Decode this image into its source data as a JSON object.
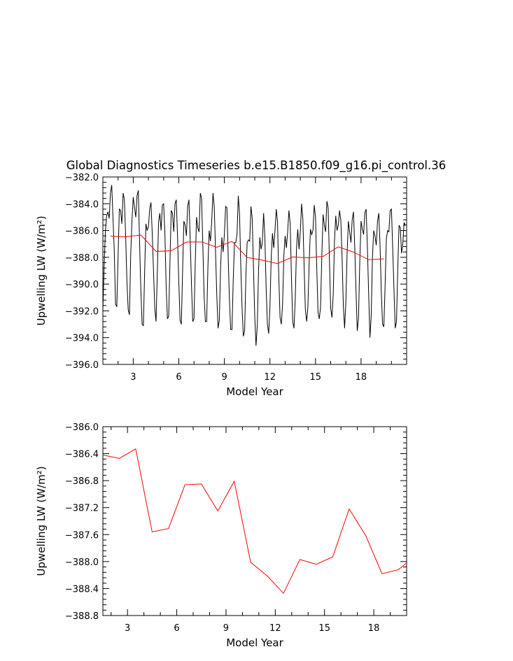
{
  "figure_title": "Global Diagnostics Timeseries b.e15.B1850.f09_g16.pi_control.36",
  "colors": {
    "monthly": "#000000",
    "annual": "#ff0000",
    "axes": "#000000"
  },
  "chart_data": [
    {
      "type": "line",
      "title": "Global Diagnostics Timeseries b.e15.B1850.f09_g16.pi_control.36",
      "xlabel": "Model Year",
      "ylabel": "Upwelling LW (W/m²)",
      "xlim": [
        1,
        21
      ],
      "ylim": [
        -396.0,
        -382.0
      ],
      "xticks": [
        3,
        6,
        9,
        12,
        15,
        18
      ],
      "yticks": [
        -382.0,
        -384.0,
        -386.0,
        -388.0,
        -390.0,
        -392.0,
        -394.0,
        -396.0
      ],
      "ytick_labels": [
        "−382.0",
        "−384.0",
        "−386.0",
        "−388.0",
        "−390.0",
        "−392.0",
        "−394.0",
        "−396.0"
      ],
      "grid": false,
      "series": [
        {
          "color": "#000000",
          "x_start": 1.0,
          "x_step": 0.0833333,
          "values": [
            -391.9,
            -388.6,
            -386.0,
            -384.9,
            -384.6,
            -385.1,
            -383.2,
            -382.6,
            -385.1,
            -387.5,
            -391.5,
            -391.7,
            -388.0,
            -384.4,
            -384.5,
            -385.5,
            -383.2,
            -383.7,
            -386.4,
            -389.8,
            -391.9,
            -392.3,
            -387.8,
            -385.2,
            -383.5,
            -384.3,
            -385.0,
            -383.4,
            -383.0,
            -386.9,
            -390.4,
            -393.0,
            -393.1,
            -389.1,
            -385.5,
            -386.0,
            -385.7,
            -384.4,
            -383.9,
            -386.2,
            -389.0,
            -391.8,
            -392.8,
            -389.2,
            -385.4,
            -384.7,
            -386.0,
            -384.1,
            -384.0,
            -386.2,
            -390.2,
            -392.6,
            -392.4,
            -388.4,
            -384.5,
            -384.7,
            -386.1,
            -384.0,
            -383.7,
            -386.5,
            -389.9,
            -392.7,
            -393.0,
            -389.0,
            -385.3,
            -385.6,
            -386.4,
            -384.2,
            -383.7,
            -386.7,
            -390.0,
            -392.8,
            -392.6,
            -388.4,
            -385.0,
            -385.8,
            -386.1,
            -383.2,
            -383.6,
            -387.2,
            -390.9,
            -392.8,
            -392.8,
            -388.7,
            -386.0,
            -386.8,
            -385.3,
            -383.2,
            -384.2,
            -387.5,
            -390.8,
            -393.3,
            -392.7,
            -388.8,
            -386.5,
            -387.6,
            -386.3,
            -384.2,
            -384.3,
            -387.9,
            -391.2,
            -393.4,
            -393.4,
            -389.7,
            -386.9,
            -386.9,
            -386.3,
            -383.4,
            -384.8,
            -388.8,
            -391.8,
            -393.9,
            -393.5,
            -389.4,
            -386.9,
            -386.7,
            -386.8,
            -384.2,
            -385.1,
            -388.8,
            -392.4,
            -394.6,
            -393.1,
            -389.0,
            -386.5,
            -387.4,
            -386.9,
            -384.7,
            -386.5,
            -390.3,
            -393.0,
            -393.7,
            -391.8,
            -388.0,
            -386.2,
            -387.3,
            -386.0,
            -384.4,
            -385.4,
            -389.5,
            -392.5,
            -393.0,
            -391.5,
            -387.9,
            -386.4,
            -387.3,
            -386.1,
            -384.5,
            -385.5,
            -389.5,
            -392.8,
            -393.3,
            -391.1,
            -387.3,
            -385.9,
            -387.4,
            -386.1,
            -384.0,
            -385.1,
            -388.6,
            -391.9,
            -392.8,
            -391.7,
            -388.4,
            -385.9,
            -386.3,
            -386.0,
            -384.1,
            -385.0,
            -388.8,
            -392.1,
            -392.6,
            -391.7,
            -387.9,
            -384.8,
            -385.6,
            -386.1,
            -383.8,
            -384.3,
            -388.2,
            -391.8,
            -392.5,
            -390.8,
            -386.8,
            -384.9,
            -386.0,
            -385.6,
            -384.5,
            -385.2,
            -388.0,
            -391.6,
            -393.3,
            -391.3,
            -387.6,
            -385.3,
            -386.1,
            -386.9,
            -385.2,
            -384.6,
            -387.2,
            -390.5,
            -393.5,
            -392.5,
            -388.3,
            -385.3,
            -385.9,
            -386.3,
            -384.7,
            -384.4,
            -387.2,
            -390.7,
            -394.0,
            -392.4,
            -388.0,
            -386.0,
            -386.4,
            -387.1,
            -385.3,
            -384.7,
            -387.1,
            -390.6,
            -393.0,
            -393.2,
            -390.1,
            -386.6,
            -386.0,
            -386.1,
            -384.5,
            -384.4,
            -387.3,
            -390.4,
            -393.3,
            -392.8,
            -388.9,
            -385.6,
            -385.8,
            -387.7,
            -387.0,
            -385.4,
            -385.6
          ]
        },
        {
          "color": "#ff0000",
          "x": [
            1.5,
            2.5,
            3.5,
            4.5,
            5.5,
            6.5,
            7.5,
            8.5,
            9.5,
            10.5,
            11.5,
            12.5,
            13.5,
            14.5,
            15.5,
            16.5,
            17.5,
            18.5,
            19.5
          ],
          "values": [
            -386.42,
            -386.47,
            -386.33,
            -387.56,
            -387.51,
            -386.86,
            -386.85,
            -387.25,
            -386.81,
            -388.01,
            -388.21,
            -388.47,
            -387.97,
            -388.04,
            -387.93,
            -387.22,
            -387.61,
            -388.18,
            -388.12
          ]
        }
      ]
    },
    {
      "type": "line",
      "title": "",
      "xlabel": "Model Year",
      "ylabel": "Upwelling LW (W/m²)",
      "xlim": [
        1.5,
        20.0
      ],
      "ylim": [
        -388.8,
        -386.0
      ],
      "xticks": [
        3,
        6,
        9,
        12,
        15,
        18
      ],
      "yticks": [
        -386.0,
        -386.4,
        -386.8,
        -387.2,
        -387.6,
        -388.0,
        -388.4,
        -388.8
      ],
      "ytick_labels": [
        "−386.0",
        "−386.4",
        "−386.8",
        "−387.2",
        "−387.6",
        "−388.0",
        "−388.4",
        "−388.8"
      ],
      "grid": false,
      "series": [
        {
          "color": "#ff0000",
          "x": [
            1.5,
            2.5,
            3.5,
            4.5,
            5.5,
            6.5,
            7.5,
            8.5,
            9.5,
            10.5,
            11.5,
            12.5,
            13.5,
            14.5,
            15.5,
            16.5,
            17.5,
            18.5,
            19.5,
            20.0
          ],
          "values": [
            -386.42,
            -386.47,
            -386.33,
            -387.56,
            -387.51,
            -386.86,
            -386.85,
            -387.25,
            -386.81,
            -388.01,
            -388.21,
            -388.47,
            -387.97,
            -388.04,
            -387.93,
            -387.22,
            -387.61,
            -388.18,
            -388.12,
            -388.02
          ]
        }
      ]
    }
  ]
}
